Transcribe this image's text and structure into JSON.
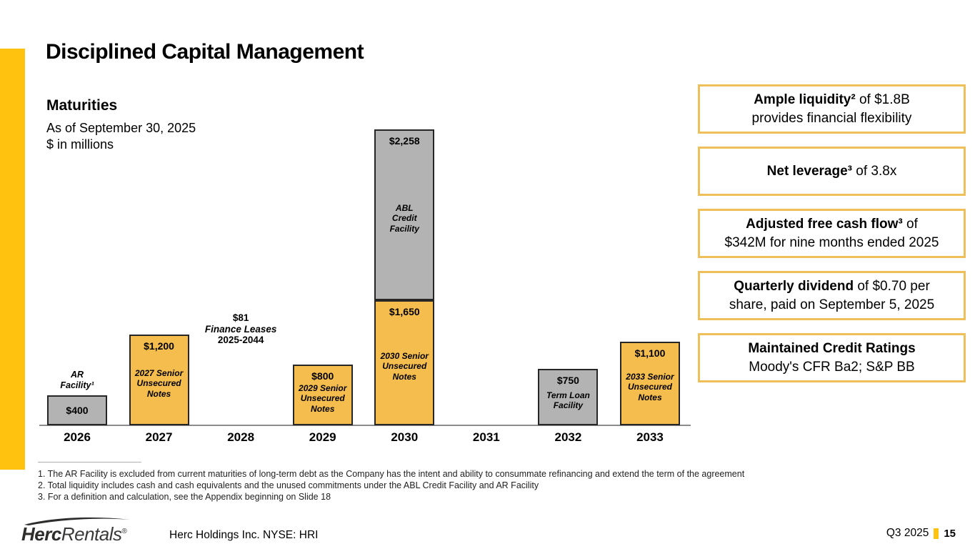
{
  "slide": {
    "title": "Disciplined Capital Management",
    "accent_color": "#FFC20E",
    "callout_border_color": "#EFBF59"
  },
  "chart_data": {
    "type": "bar",
    "title": "Maturities",
    "subtitle": "As of September 30, 2025",
    "units": "$ in millions",
    "ylim": [
      0,
      3908
    ],
    "grid": false,
    "legend": "none",
    "categories": [
      "2026",
      "2027",
      "2028",
      "2029",
      "2030",
      "2031",
      "2032",
      "2033"
    ],
    "colors": {
      "yellow": "#F5BC4E",
      "gray": "#B3B3B3",
      "border": "#262626",
      "axis": "#8C8C8C"
    },
    "bars": [
      {
        "category": "2026",
        "above_label": "AR\nFacility¹",
        "segments": [
          {
            "value": 400,
            "value_label": "$400",
            "name": "",
            "color": "gray"
          }
        ]
      },
      {
        "category": "2027",
        "segments": [
          {
            "value": 1200,
            "value_label": "$1,200",
            "name": "2027 Senior\nUnsecured\nNotes",
            "color": "yellow"
          }
        ]
      },
      {
        "category": "2029",
        "segments": [
          {
            "value": 800,
            "value_label": "$800",
            "name": "2029 Senior\nUnsecured\nNotes",
            "color": "yellow"
          }
        ]
      },
      {
        "category": "2030",
        "segments": [
          {
            "value": 1650,
            "value_label": "$1,650",
            "name": "2030 Senior\nUnsecured\nNotes",
            "color": "yellow"
          },
          {
            "value": 2258,
            "value_label": "$2,258",
            "name": "ABL\nCredit\nFacility",
            "color": "gray"
          }
        ]
      },
      {
        "category": "2032",
        "segments": [
          {
            "value": 750,
            "value_label": "$750",
            "name": "Term Loan\nFacility",
            "color": "gray"
          }
        ]
      },
      {
        "category": "2033",
        "segments": [
          {
            "value": 1100,
            "value_label": "$1,100",
            "name": "2033 Senior\nUnsecured\nNotes",
            "color": "yellow"
          }
        ]
      }
    ],
    "annotation": {
      "category": "2028",
      "lines": [
        "$81",
        "Finance Leases",
        "2025-2044"
      ],
      "italic_line_index": 1
    }
  },
  "callouts": [
    {
      "parts": [
        {
          "b": "Ample liquidity²"
        },
        {
          "t": " of $1.8B"
        },
        {
          "br": true
        },
        {
          "t": "provides financial flexibility"
        }
      ]
    },
    {
      "parts": [
        {
          "b": "Net leverage³"
        },
        {
          "t": " of 3.8x"
        }
      ]
    },
    {
      "parts": [
        {
          "b": "Adjusted free cash flow³"
        },
        {
          "t": " of"
        },
        {
          "br": true
        },
        {
          "t": "$342M for nine months ended 2025"
        }
      ]
    },
    {
      "parts": [
        {
          "b": "Quarterly dividend"
        },
        {
          "t": " of $0.70 per"
        },
        {
          "br": true
        },
        {
          "t": "share, paid on September 5, 2025"
        }
      ]
    },
    {
      "parts": [
        {
          "b": "Maintained Credit Ratings"
        },
        {
          "br": true
        },
        {
          "t": "Moody's CFR Ba2; S&P BB"
        }
      ]
    }
  ],
  "footnotes": [
    "1. The AR Facility is excluded from current maturities of long-term debt as the Company has the intent and ability to consummate refinancing and extend the term of the agreement",
    "2. Total liquidity includes cash and cash equivalents and the unused commitments under the ABL Credit Facility and AR Facility",
    "3. For a definition and calculation, see the Appendix beginning on Slide 18"
  ],
  "footer": {
    "logo": {
      "brand_bold": "Herc",
      "brand_light": "Rentals",
      "registered": "®"
    },
    "company": "Herc Holdings Inc.  NYSE: HRI",
    "period": "Q3 2025",
    "page": "15"
  }
}
